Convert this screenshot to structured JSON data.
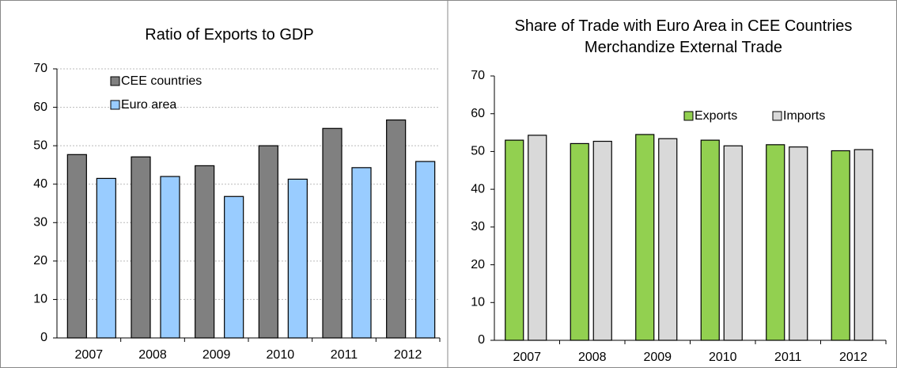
{
  "chart_data": [
    {
      "type": "bar",
      "title": "Ratio of Exports to GDP",
      "categories": [
        "2007",
        "2008",
        "2009",
        "2010",
        "2011",
        "2012"
      ],
      "series": [
        {
          "name": "CEE countries",
          "color": "#808080",
          "values": [
            47.7,
            47.1,
            44.8,
            50.0,
            54.5,
            56.7
          ]
        },
        {
          "name": "Euro area",
          "color": "#99ccff",
          "values": [
            41.5,
            42.0,
            36.8,
            41.3,
            44.3,
            45.9
          ]
        }
      ],
      "ylim": [
        0,
        70
      ],
      "yticks": [
        0,
        10,
        20,
        30,
        40,
        50,
        60,
        70
      ],
      "grid": true,
      "legend": "upper left"
    },
    {
      "type": "bar",
      "title": "Share of Trade with Euro Area in CEE Countries Merchandize External Trade",
      "categories": [
        "2007",
        "2008",
        "2009",
        "2010",
        "2011",
        "2012"
      ],
      "series": [
        {
          "name": "Exports",
          "color": "#92d050",
          "values": [
            53.0,
            52.1,
            54.5,
            53.0,
            51.8,
            50.2
          ]
        },
        {
          "name": "Imports",
          "color": "#d9d9d9",
          "values": [
            54.3,
            52.7,
            53.4,
            51.5,
            51.2,
            50.5
          ]
        }
      ],
      "ylim": [
        0,
        70
      ],
      "yticks": [
        0,
        10,
        20,
        30,
        40,
        50,
        60,
        70
      ],
      "grid": false,
      "legend": "upper right"
    }
  ]
}
